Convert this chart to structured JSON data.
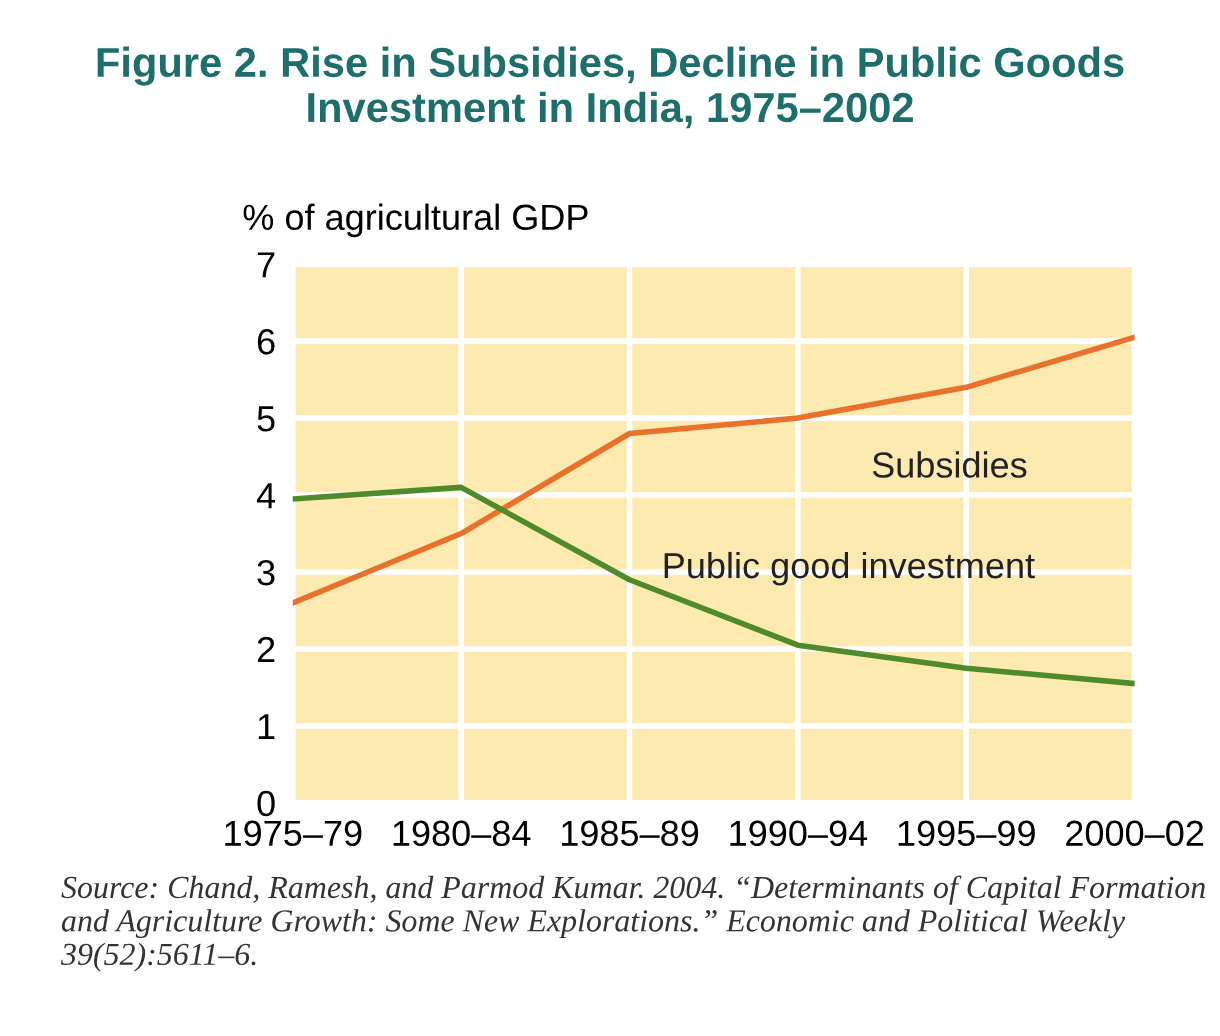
{
  "chart_data": {
    "type": "line",
    "title": "Figure 2. Rise in Subsidies, Decline in Public Goods\nInvestment in India, 1975–2002",
    "ylabel": "% of agricultural GDP",
    "categories": [
      "1975–79",
      "1980–84",
      "1985–89",
      "1990–94",
      "1995–99",
      "2000–02"
    ],
    "series": [
      {
        "name": "Subsidies",
        "color": "#e8722c",
        "values": [
          2.6,
          3.5,
          4.8,
          5.0,
          5.4,
          6.05
        ]
      },
      {
        "name": "Public good investment",
        "color": "#4f8a2b",
        "values": [
          3.95,
          4.1,
          2.9,
          2.05,
          1.75,
          1.55
        ]
      }
    ],
    "ylim": [
      0,
      7
    ],
    "yticks": [
      0,
      1,
      2,
      3,
      4,
      5,
      6,
      7
    ],
    "grid": true,
    "legend": false,
    "marker": "none",
    "line_style": "solid",
    "annotations": [
      "Source: Chand, Ramesh, and Parmod Kumar. 2004. “Determinants of Capital Formation and Agriculture Growth: Some New Explorations.” Economic and Political Weekly 39(52):5611–6."
    ]
  }
}
